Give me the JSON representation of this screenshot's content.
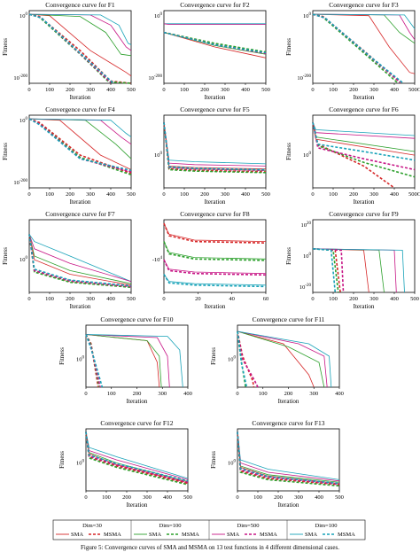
{
  "caption": "Figure 5: Convergence curves of SMA and MSMA on 13 test functions in 4 different dimensional cases.",
  "legend": {
    "dims": [
      "Dim=30",
      "Dim=100",
      "Dim=500",
      "Dim=100"
    ],
    "colors": [
      "#d62728",
      "#2ca02c",
      "#c71585",
      "#17a2b8"
    ],
    "algorithms": [
      "SMA",
      "MSMA"
    ]
  },
  "chart_data": [
    {
      "id": "F1",
      "title": "Convergence curve for F1",
      "type": "line",
      "xlabel": "Iteration",
      "ylabel": "Fitness",
      "xlim": [
        0,
        500
      ],
      "ylim_label": [
        "10^0",
        "10^-200"
      ],
      "xticks": [
        "0",
        "100",
        "200",
        "300",
        "400",
        "500"
      ],
      "yticks": [
        "10^0",
        "10^-200"
      ]
    },
    {
      "id": "F2",
      "title": "Convergence curve for F2",
      "type": "line",
      "xlabel": "Iteration",
      "ylabel": "",
      "xlim": [
        0,
        500
      ],
      "xticks": [
        "0",
        "100",
        "200",
        "300",
        "400",
        "500"
      ],
      "yticks": [
        "10^0",
        "10^-200"
      ]
    },
    {
      "id": "F3",
      "title": "Convergence curve for F3",
      "type": "line",
      "xlabel": "Iteration",
      "ylabel": "Fitness",
      "xlim": [
        0,
        500
      ],
      "xticks": [
        "0",
        "100",
        "200",
        "300",
        "400",
        "500C"
      ],
      "yticks": [
        "10^0",
        "10^-200"
      ]
    },
    {
      "id": "F4",
      "title": "Convergence curve for F4",
      "type": "line",
      "xlabel": "Iteration",
      "ylabel": "Fitness",
      "xlim": [
        0,
        500
      ],
      "xticks": [
        "0",
        "100",
        "200",
        "300",
        "400",
        "500"
      ],
      "yticks": [
        "10^0",
        "10^-200"
      ]
    },
    {
      "id": "F5",
      "title": "Convergence curve for F5",
      "type": "line",
      "xlabel": "Iteration",
      "ylabel": "",
      "xlim": [
        0,
        500
      ],
      "xticks": [
        "0",
        "100",
        "200",
        "300",
        "400",
        "500"
      ],
      "yticks": [
        "10^0"
      ]
    },
    {
      "id": "F6",
      "title": "Convergence curve for F6",
      "type": "line",
      "xlabel": "Iteration",
      "ylabel": "Fitness",
      "xlim": [
        0,
        500
      ],
      "xticks": [
        "0",
        "100",
        "200",
        "300",
        "400",
        "500C"
      ],
      "yticks": [
        "10^0"
      ]
    },
    {
      "id": "F7",
      "title": "Convergence curve for F7",
      "type": "line",
      "xlabel": "Iteration",
      "ylabel": "Fitness",
      "xlim": [
        0,
        500
      ],
      "xticks": [
        "0",
        "100",
        "200",
        "300",
        "400",
        "500"
      ],
      "yticks": [
        "10^0"
      ]
    },
    {
      "id": "F8",
      "title": "Convergence curve for F8",
      "type": "line",
      "xlabel": "Iteration",
      "ylabel": "",
      "xlim": [
        0,
        60
      ],
      "xticks": [
        "0",
        "20",
        "40",
        "60"
      ],
      "yticks": [
        "-10^4"
      ]
    },
    {
      "id": "F9",
      "title": "Convergence curve for F9",
      "type": "line",
      "xlabel": "Iteration",
      "ylabel": "Fitness",
      "xlim": [
        0,
        500
      ],
      "xticks": [
        "0",
        "100",
        "200",
        "300",
        "400",
        "500"
      ],
      "yticks": [
        "10^20",
        "10^0",
        "10^-20"
      ]
    },
    {
      "id": "F10",
      "title": "Convergence curve for F10",
      "type": "line",
      "xlabel": "Iteration",
      "ylabel": "Fitness",
      "xlim": [
        0,
        400
      ],
      "xticks": [
        "0",
        "100",
        "200",
        "300",
        "400"
      ],
      "yticks": [
        "10^0"
      ]
    },
    {
      "id": "F11",
      "title": "Convergence curve for F11",
      "type": "line",
      "xlabel": "Iteration",
      "ylabel": "Fitness",
      "xlim": [
        0,
        400
      ],
      "xticks": [
        "0",
        "100",
        "200",
        "300",
        "400"
      ],
      "yticks": [
        "10^0"
      ]
    },
    {
      "id": "F12",
      "title": "Convergence curve for F12",
      "type": "line",
      "xlabel": "Iteration",
      "ylabel": "Fitness",
      "xlim": [
        0,
        500
      ],
      "xticks": [
        "0",
        "100",
        "200",
        "300",
        "400",
        "500"
      ],
      "yticks": [
        "10^0"
      ]
    },
    {
      "id": "F13",
      "title": "Convergence curve for F13",
      "type": "line",
      "xlabel": "Iteration",
      "ylabel": "Fitness",
      "xlim": [
        0,
        500
      ],
      "xticks": [
        "0",
        "100",
        "200",
        "300",
        "400",
        "500"
      ],
      "yticks": [
        "10^0"
      ]
    }
  ]
}
